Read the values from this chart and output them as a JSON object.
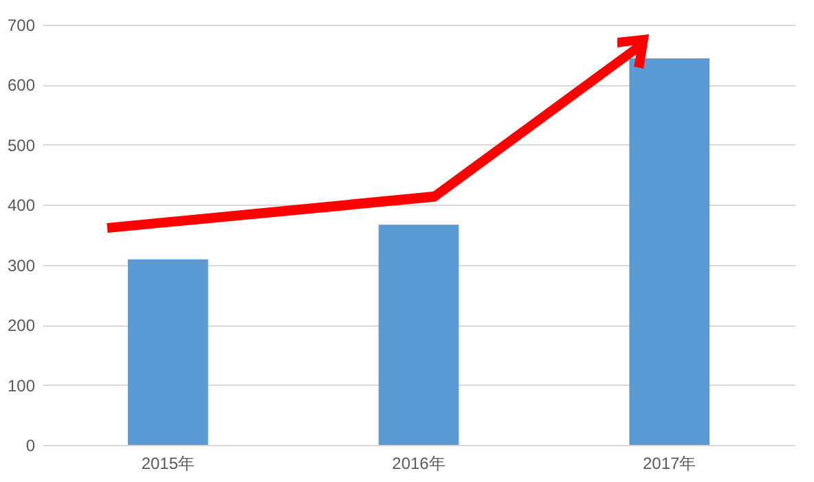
{
  "chart_data": {
    "type": "bar",
    "categories": [
      "2015年",
      "2016年",
      "2017年"
    ],
    "values": [
      309,
      367,
      644
    ],
    "color": "#5b9bd5",
    "ylim": [
      0,
      700
    ],
    "yticks": [
      0,
      100,
      200,
      300,
      400,
      500,
      600,
      700
    ],
    "grid": "y"
  }
}
